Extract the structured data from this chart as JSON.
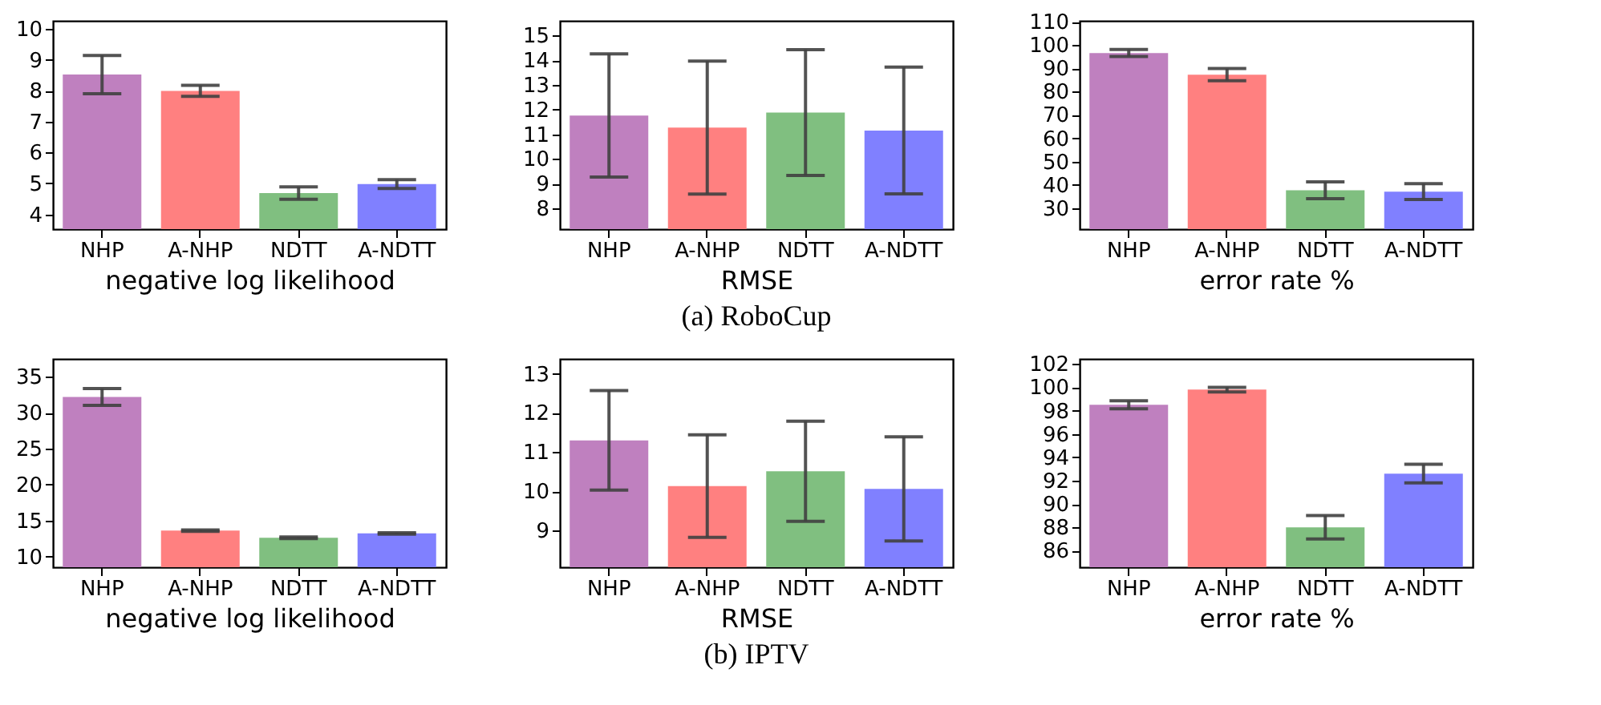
{
  "chart_data": [
    {
      "type": "bar",
      "categories": [
        "NHP",
        "A-NHP",
        "NDTT",
        "A-NDTT"
      ],
      "values": [
        8.53,
        8.0,
        4.69,
        4.98
      ],
      "colors": [
        "#bf80bf",
        "#ff8080",
        "#80bf80",
        "#8080ff"
      ],
      "errors": [
        0.62,
        0.18,
        0.2,
        0.14
      ],
      "xlabel": "negative log likelihood",
      "ylim": [
        3.52,
        10.27
      ],
      "yticks": [
        4,
        5,
        6,
        7,
        8,
        9,
        10
      ],
      "grid": false
    },
    {
      "type": "bar",
      "categories": [
        "NHP",
        "A-NHP",
        "NDTT",
        "A-NDTT"
      ],
      "values": [
        11.76,
        11.27,
        11.88,
        11.15
      ],
      "colors": [
        "#bf80bf",
        "#ff8080",
        "#80bf80",
        "#8080ff"
      ],
      "errors": [
        2.5,
        2.7,
        2.55,
        2.57
      ],
      "xlabel": "RMSE",
      "ylim": [
        7.15,
        15.6
      ],
      "yticks": [
        8,
        9,
        10,
        11,
        12,
        13,
        14,
        15
      ],
      "grid": false,
      "annotations": [
        "(a) RoboCup"
      ]
    },
    {
      "type": "bar",
      "categories": [
        "NHP",
        "A-NHP",
        "NDTT",
        "A-NDTT"
      ],
      "values": [
        96.6,
        87.3,
        37.7,
        37.1
      ],
      "colors": [
        "#bf80bf",
        "#ff8080",
        "#80bf80",
        "#8080ff"
      ],
      "errors": [
        1.5,
        2.6,
        3.6,
        3.4
      ],
      "xlabel": "error rate %",
      "ylim": [
        21,
        110.4
      ],
      "yticks": [
        30,
        40,
        50,
        60,
        70,
        80,
        90,
        100,
        110
      ],
      "grid": false
    },
    {
      "type": "bar",
      "categories": [
        "NHP",
        "A-NHP",
        "NDTT",
        "A-NDTT"
      ],
      "values": [
        32.2,
        13.6,
        12.6,
        13.2
      ],
      "colors": [
        "#bf80bf",
        "#ff8080",
        "#80bf80",
        "#8080ff"
      ],
      "errors": [
        1.17,
        0.1,
        0.1,
        0.1
      ],
      "xlabel": "negative log likelihood",
      "ylim": [
        8.5,
        37.5
      ],
      "yticks": [
        10,
        15,
        20,
        25,
        30,
        35
      ],
      "grid": false
    },
    {
      "type": "bar",
      "categories": [
        "NHP",
        "A-NHP",
        "NDTT",
        "A-NDTT"
      ],
      "values": [
        11.3,
        10.13,
        10.51,
        10.06
      ],
      "colors": [
        "#bf80bf",
        "#ff8080",
        "#80bf80",
        "#8080ff"
      ],
      "errors": [
        1.27,
        1.31,
        1.28,
        1.33
      ],
      "xlabel": "RMSE",
      "ylim": [
        8.06,
        13.38
      ],
      "yticks": [
        9,
        10,
        11,
        12,
        13
      ],
      "grid": false,
      "annotations": [
        "(b) IPTV"
      ]
    },
    {
      "type": "bar",
      "categories": [
        "NHP",
        "A-NHP",
        "NDTT",
        "A-NDTT"
      ],
      "values": [
        98.5,
        99.8,
        88.0,
        92.6
      ],
      "colors": [
        "#bf80bf",
        "#ff8080",
        "#80bf80",
        "#8080ff"
      ],
      "errors": [
        0.35,
        0.2,
        1.0,
        0.8
      ],
      "xlabel": "error rate %",
      "ylim": [
        84.58,
        102.43
      ],
      "yticks": [
        86,
        88,
        90,
        92,
        94,
        96,
        98,
        100,
        102
      ],
      "grid": false
    }
  ]
}
